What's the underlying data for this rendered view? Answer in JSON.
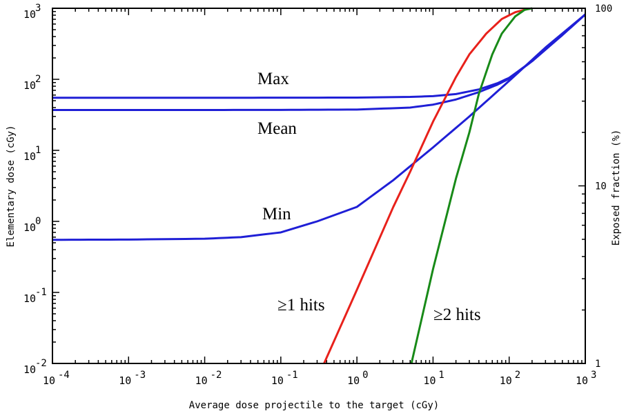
{
  "chart_data": {
    "type": "line",
    "title": "",
    "xlabel": "Average dose projectile to the target (cGy)",
    "ylabel_left": "Elementary dose (cGy)",
    "ylabel_right": "Exposed fraction (%)",
    "x_scale": "log",
    "y_left_scale": "log",
    "y_right_scale": "log",
    "xlim": [
      0.0001,
      1000
    ],
    "ylim_left": [
      0.01,
      1000
    ],
    "ylim_right": [
      1,
      100
    ],
    "grid": false,
    "x_ticks": [
      {
        "base": "10",
        "exp": "-4"
      },
      {
        "base": "10",
        "exp": "-3"
      },
      {
        "base": "10",
        "exp": "-2"
      },
      {
        "base": "10",
        "exp": "-1"
      },
      {
        "base": "10",
        "exp": "0"
      },
      {
        "base": "10",
        "exp": "1"
      },
      {
        "base": "10",
        "exp": "2"
      },
      {
        "base": "10",
        "exp": "3"
      }
    ],
    "y_left_ticks": [
      {
        "base": "10",
        "exp": "-2"
      },
      {
        "base": "10",
        "exp": "-1"
      },
      {
        "base": "10",
        "exp": "0"
      },
      {
        "base": "10",
        "exp": "1"
      },
      {
        "base": "10",
        "exp": "2"
      },
      {
        "base": "10",
        "exp": "3"
      }
    ],
    "y_right_ticks": [
      "1",
      "10",
      "100"
    ],
    "series": [
      {
        "name": "Max",
        "axis": "left",
        "color": "#1f1fd6",
        "points": [
          [
            0.0001,
            55
          ],
          [
            0.001,
            55
          ],
          [
            0.01,
            55
          ],
          [
            0.1,
            55.1
          ],
          [
            1,
            55.3
          ],
          [
            5,
            56.5
          ],
          [
            10,
            58
          ],
          [
            20,
            62
          ],
          [
            40,
            72
          ],
          [
            70,
            88
          ],
          [
            100,
            105
          ],
          [
            200,
            180
          ],
          [
            500,
            420
          ],
          [
            1000,
            820
          ]
        ]
      },
      {
        "name": "Mean",
        "axis": "left",
        "color": "#1f1fd6",
        "points": [
          [
            0.0001,
            37
          ],
          [
            0.001,
            37
          ],
          [
            0.01,
            37
          ],
          [
            0.1,
            37.1
          ],
          [
            1,
            37.5
          ],
          [
            5,
            40
          ],
          [
            10,
            44
          ],
          [
            20,
            52
          ],
          [
            40,
            66
          ],
          [
            70,
            84
          ],
          [
            100,
            102
          ],
          [
            200,
            180
          ],
          [
            500,
            420
          ],
          [
            1000,
            820
          ]
        ]
      },
      {
        "name": "Min",
        "axis": "left",
        "color": "#1f1fd6",
        "points": [
          [
            0.0001,
            0.55
          ],
          [
            0.001,
            0.555
          ],
          [
            0.01,
            0.57
          ],
          [
            0.03,
            0.6
          ],
          [
            0.1,
            0.7
          ],
          [
            0.3,
            1
          ],
          [
            1,
            1.6
          ],
          [
            3,
            3.8
          ],
          [
            10,
            11
          ],
          [
            30,
            30
          ],
          [
            100,
            95
          ],
          [
            300,
            280
          ],
          [
            1000,
            820
          ]
        ]
      },
      {
        "name": "≥1 hits",
        "axis": "right",
        "color": "#e8211b",
        "points": [
          [
            0.37,
            1
          ],
          [
            1,
            2.6
          ],
          [
            3,
            7.6
          ],
          [
            5,
            12
          ],
          [
            10,
            23
          ],
          [
            20,
            41
          ],
          [
            30,
            55
          ],
          [
            50,
            72
          ],
          [
            80,
            87
          ],
          [
            120,
            95
          ],
          [
            180,
            99.5
          ]
        ]
      },
      {
        "name": "≥2 hits",
        "axis": "right",
        "color": "#188a18",
        "points": [
          [
            5.2,
            1
          ],
          [
            10,
            3.4
          ],
          [
            20,
            11
          ],
          [
            30,
            20
          ],
          [
            40,
            33
          ],
          [
            60,
            55
          ],
          [
            80,
            72
          ],
          [
            120,
            90
          ],
          [
            160,
            98
          ],
          [
            200,
            100
          ]
        ]
      }
    ],
    "annotations": [
      {
        "text": "Max",
        "target": "Max"
      },
      {
        "text": "Mean",
        "target": "Mean"
      },
      {
        "text": "Min",
        "target": "Min"
      },
      {
        "text": "≥1 hits",
        "target": "≥1 hits"
      },
      {
        "text": "≥2 hits",
        "target": "≥2 hits"
      }
    ]
  }
}
